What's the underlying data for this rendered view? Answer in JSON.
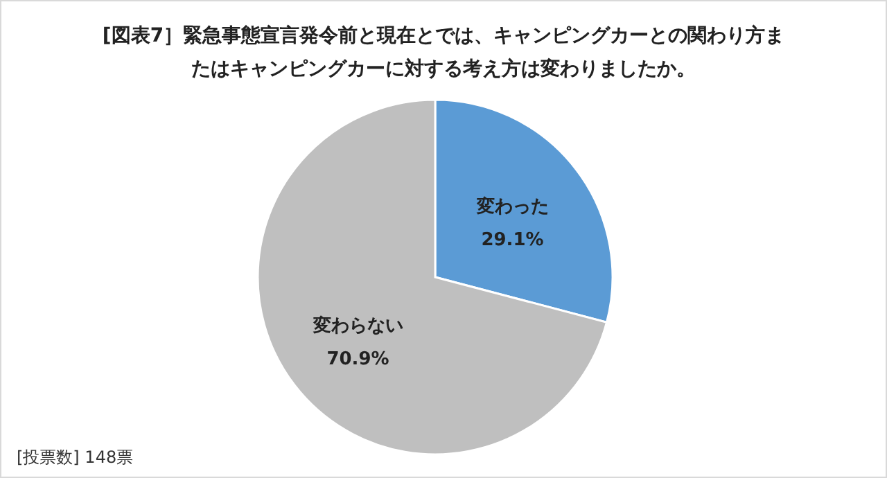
{
  "chart_data": {
    "type": "pie",
    "title": "[図表7］緊急事態宣言発令前と現在とでは、キャンピングカーとの関わり方またはキャンピングカーに対する考え方は変わりましたか。",
    "categories": [
      "変わった",
      "変わらない"
    ],
    "values": [
      29.1,
      70.9
    ],
    "colors": [
      "#5b9bd5",
      "#bfbfbf"
    ],
    "value_labels": [
      "29.1%",
      "70.9%"
    ],
    "legend": false,
    "annotations": [
      "[投票数] 148票"
    ]
  }
}
